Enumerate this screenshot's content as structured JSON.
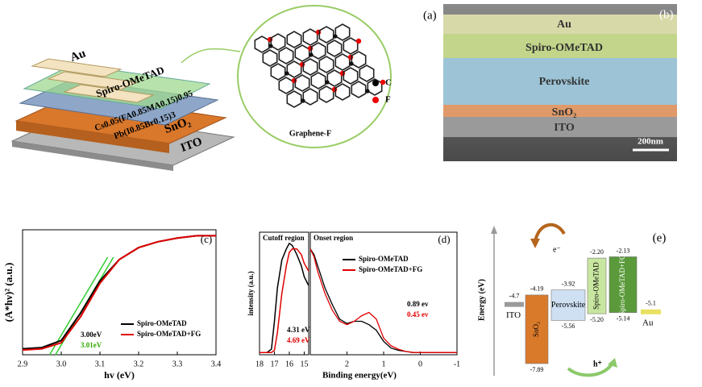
{
  "figure": {
    "a": {
      "label": "(a)",
      "layers": [
        "Au",
        "Spiro-OMeTAD",
        "Cs0.05(FA0.85MA0.15)0.95",
        "Pb(I0.85Br0.15)3",
        "SnO₂",
        "ITO"
      ],
      "inset_title": "Graphene-F",
      "legend": [
        "C",
        "F"
      ]
    },
    "b": {
      "label": "(b)",
      "layers": [
        "Au",
        "Spiro-OMeTAD",
        "Perovskite",
        "SnO₂",
        "ITO"
      ],
      "scale_bar": "200nm"
    }
  },
  "chart_data": [
    {
      "type": "line",
      "panel_label": "(c)",
      "x_label": "hv (eV)",
      "y_label": "(A*hν)² (a.u.)",
      "x": [
        2.9,
        2.95,
        3.0,
        3.05,
        3.1,
        3.15,
        3.2,
        3.25,
        3.3,
        3.35,
        3.4
      ],
      "series": [
        {
          "name": "Spiro-OMeTAD",
          "color": "#000000",
          "values": [
            0.05,
            0.06,
            0.12,
            0.35,
            0.62,
            0.8,
            0.9,
            0.95,
            0.98,
            1.0,
            1.0
          ]
        },
        {
          "name": "Spiro-OMeTAD+FG",
          "color": "#e00000",
          "values": [
            0.04,
            0.05,
            0.1,
            0.32,
            0.6,
            0.8,
            0.9,
            0.95,
            0.98,
            1.0,
            1.0
          ]
        }
      ],
      "tangents": [
        {
          "color": "#33cc33",
          "x": [
            2.97,
            3.12
          ],
          "y": [
            0,
            0.82
          ]
        },
        {
          "color": "#33cc33",
          "x": [
            2.985,
            3.135
          ],
          "y": [
            0,
            0.82
          ]
        }
      ],
      "annotations": [
        {
          "text": "3.00eV",
          "color": "#000000"
        },
        {
          "text": "3.01eV",
          "color": "#33aa00"
        }
      ],
      "xlim": [
        2.9,
        3.4
      ],
      "xticks": [
        2.9,
        {
          "value": 3,
          "label": "3.0"
        },
        3.1,
        3.2,
        3.3,
        3.4
      ],
      "ylim": [
        0,
        1.05
      ],
      "legend": "lower right"
    },
    {
      "type": "line",
      "title": "Cutoff region",
      "y_label": "intensity (a.u.)",
      "x": [
        18,
        17.5,
        17.2,
        17,
        16.8,
        16.5,
        16.2,
        16,
        15.8,
        15.5,
        15.2,
        15,
        14.7
      ],
      "series": [
        {
          "name": "Spiro-OMeTAD",
          "color": "#000000",
          "values": [
            0.02,
            0.02,
            0.05,
            0.3,
            0.6,
            0.85,
            0.95,
            1.0,
            0.98,
            0.9,
            0.8,
            0.7,
            0.62
          ]
        },
        {
          "name": "Spiro-OMeTAD+FG",
          "color": "#e00000",
          "values": [
            0.02,
            0.02,
            0.02,
            0.04,
            0.2,
            0.55,
            0.8,
            0.92,
            0.95,
            0.95,
            0.9,
            0.82,
            0.75
          ]
        }
      ],
      "annotations": [
        {
          "text": "4.31 eV",
          "color": "#000000"
        },
        {
          "text": "4.69 eV",
          "color": "#e00000"
        }
      ],
      "xlim": [
        18,
        14.7
      ],
      "xticks": [
        18,
        17,
        16,
        15
      ],
      "ylim": [
        0,
        1.1
      ]
    },
    {
      "type": "line",
      "title": "Onset region",
      "panel_label": "(d)",
      "x_label": "Binding energy(eV)",
      "x": [
        3,
        2.9,
        2.8,
        2.6,
        2.4,
        2.2,
        2,
        1.8,
        1.6,
        1.4,
        1.2,
        1,
        0.8,
        0.6,
        0.4,
        0.2,
        0,
        -0.5,
        -1
      ],
      "series": [
        {
          "name": "Spiro-OMeTAD",
          "color": "#000000",
          "values": [
            0.95,
            0.9,
            0.8,
            0.6,
            0.45,
            0.32,
            0.28,
            0.3,
            0.3,
            0.27,
            0.22,
            0.12,
            0.06,
            0.04,
            0.03,
            0.02,
            0.02,
            0.02,
            0.02
          ]
        },
        {
          "name": "Spiro-OMeTAD+FG",
          "color": "#e00000",
          "values": [
            0.95,
            0.88,
            0.75,
            0.55,
            0.4,
            0.3,
            0.27,
            0.3,
            0.35,
            0.38,
            0.32,
            0.15,
            0.08,
            0.05,
            0.03,
            0.02,
            0.02,
            0.02,
            0.02
          ]
        }
      ],
      "annotations": [
        {
          "text": "0.89 ev",
          "color": "#000000"
        },
        {
          "text": "0.45 ev",
          "color": "#e00000"
        }
      ],
      "xlim": [
        3,
        -1
      ],
      "xticks": [
        2,
        1,
        0,
        -1
      ],
      "ylim": [
        0,
        1.1
      ],
      "legend": "upper right"
    },
    {
      "type": "energy-level",
      "panel_label": "(e)",
      "y_label": "Energy (eV)",
      "categories": [
        "ITO",
        "SnO₂",
        "Perovskite",
        "Spiro-OMeTAD",
        "Spiro-OMeTAD+FG",
        "Au"
      ],
      "colors": [
        "#9a9a9a",
        "#d97a2b",
        "#cfe0f3",
        "#c8e6a0",
        "#5a9a3a",
        "#e8e060"
      ],
      "top": [
        -4.7,
        -4.19,
        -3.92,
        -2.2,
        -2.13,
        -5.1
      ],
      "top_value_labels": [
        "-4.7",
        "-4.19",
        "-3.92",
        "-2.20",
        "-2.13",
        "-5.1"
      ],
      "bottom": [
        null,
        -7.89,
        -5.56,
        -5.2,
        -5.14,
        null
      ],
      "bottom_value_labels": [
        null,
        "-7.89",
        "-5.56",
        "-5.20",
        "-5.14",
        null
      ],
      "carriers": [
        "e⁻",
        "h⁺"
      ],
      "ylim": [
        -8.5,
        -1.5
      ]
    }
  ]
}
